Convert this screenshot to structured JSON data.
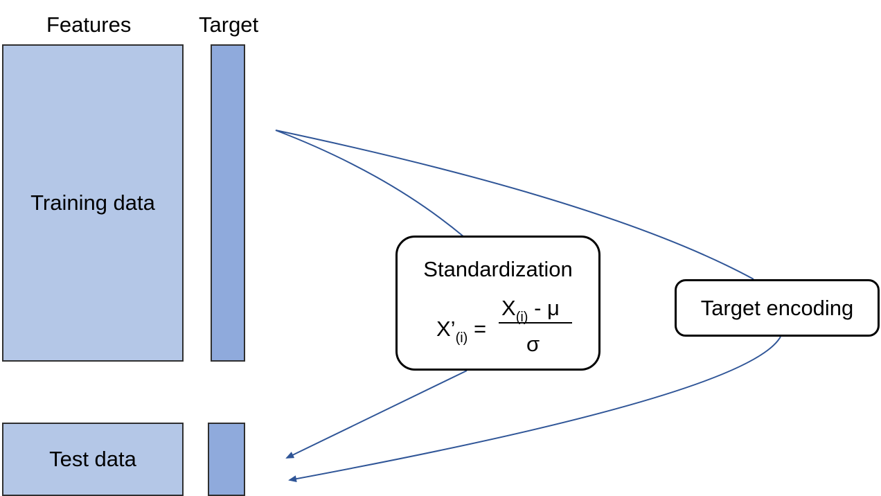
{
  "headers": {
    "features": "Features",
    "target": "Target"
  },
  "training": {
    "label": "Training data"
  },
  "test": {
    "label": "Test data"
  },
  "standardization": {
    "title": "Standardization",
    "lhs_main": "X’",
    "lhs_sub": "(i)",
    "equals": "=",
    "numerator_main": "X",
    "numerator_sub": "(i)",
    "numerator_rest": "- μ",
    "denominator": "σ"
  },
  "target_encoding": {
    "label": "Target encoding"
  },
  "colors": {
    "features_fill": "#b4c7e7",
    "target_fill": "#8faadc",
    "connector": "#2f5597"
  }
}
